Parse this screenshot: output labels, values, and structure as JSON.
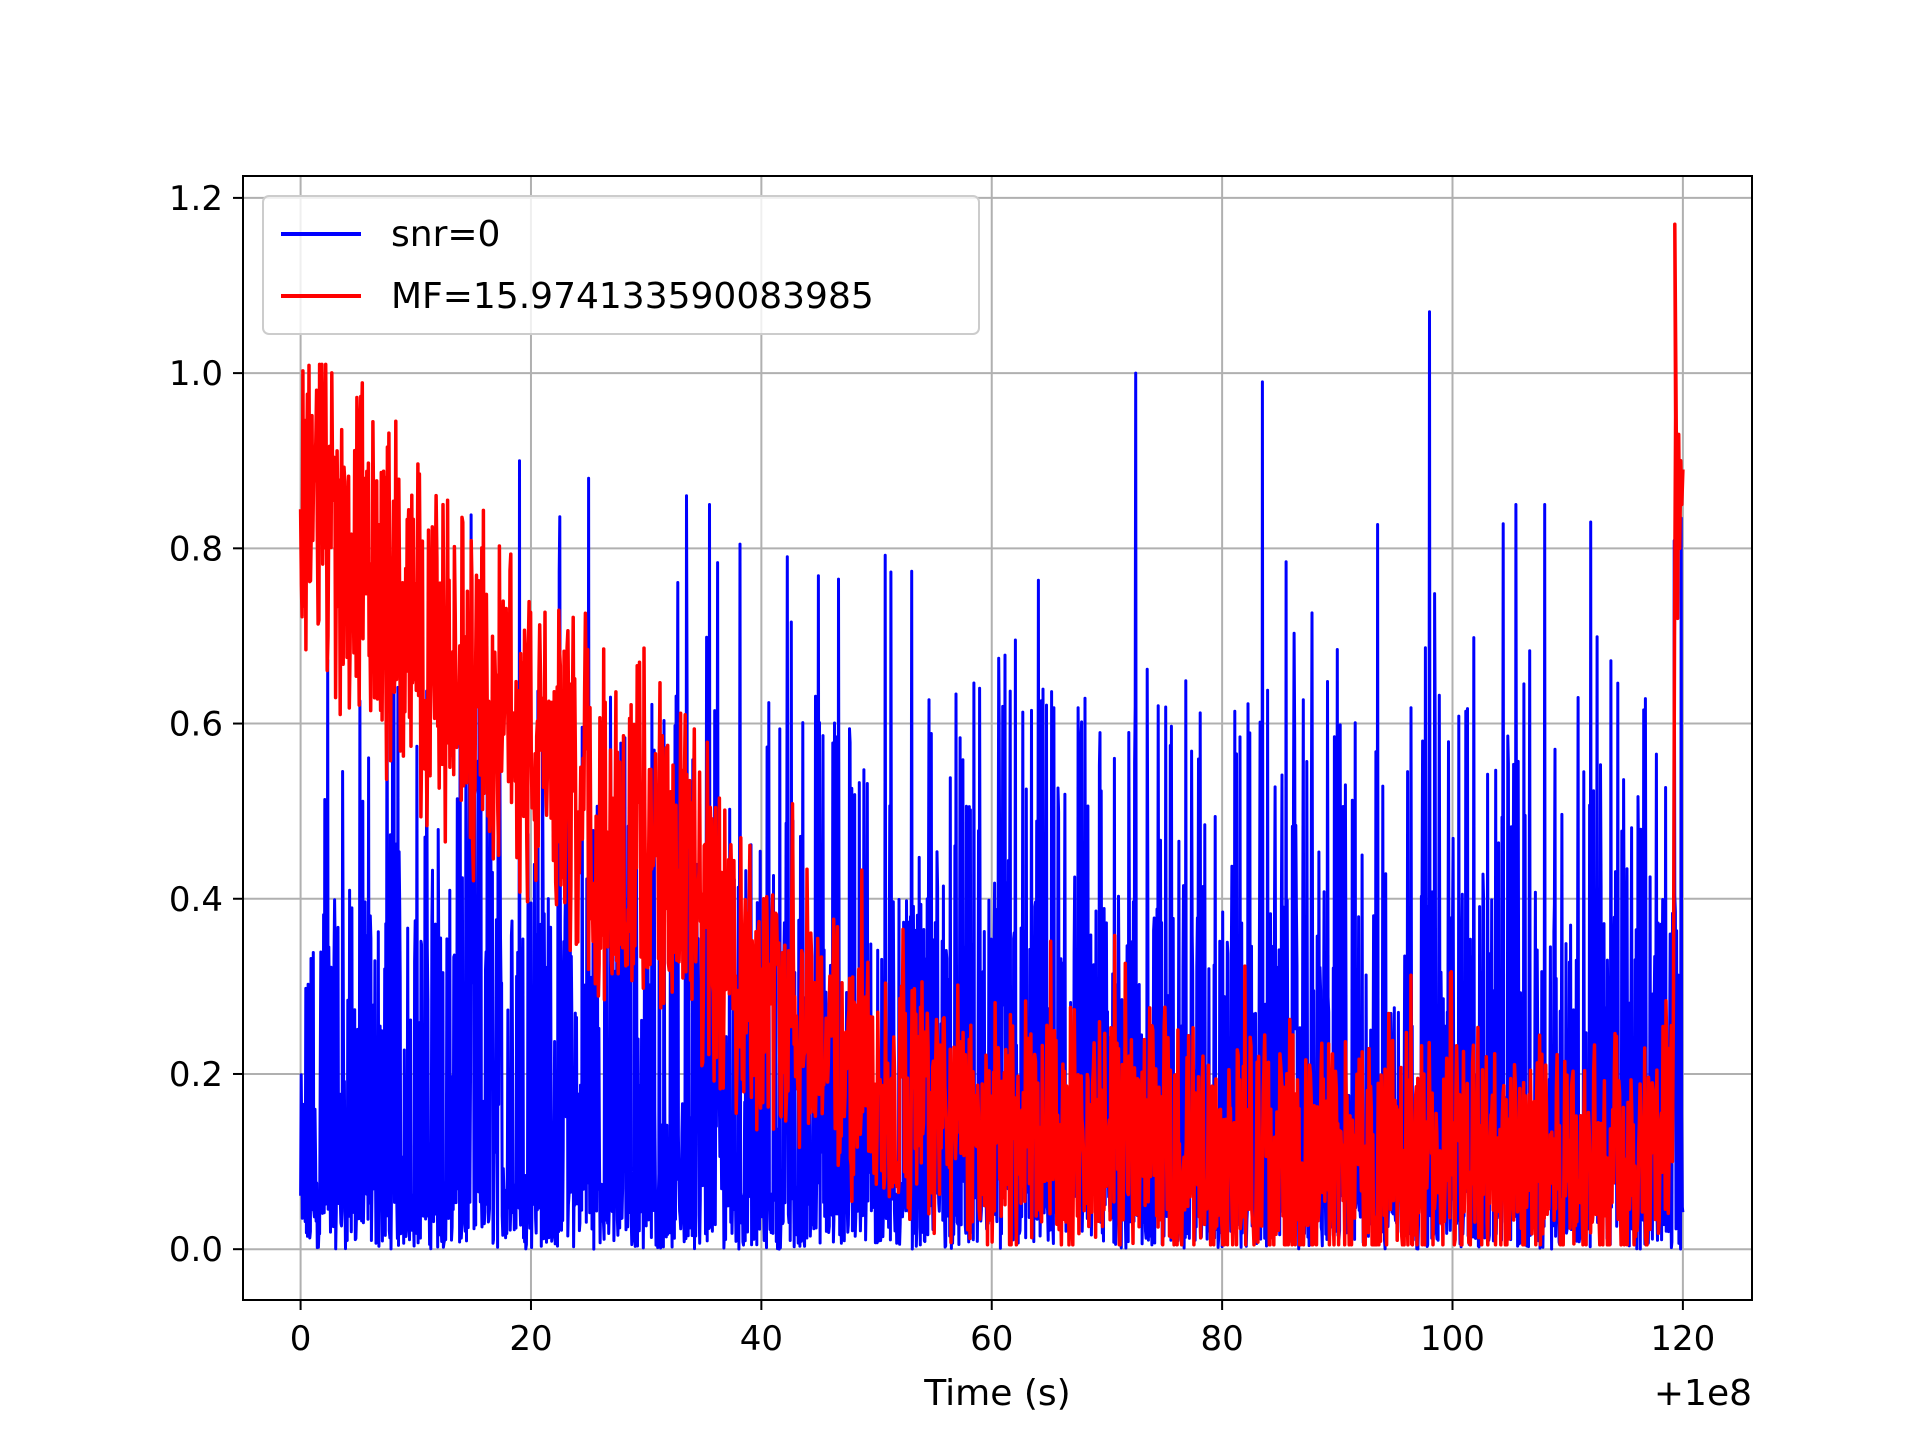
{
  "chart_data": {
    "type": "line",
    "title": "",
    "xlabel": "Time (s)",
    "ylabel": "",
    "x_offset_label": "+1e8",
    "xlim": [
      -5,
      126
    ],
    "ylim": [
      -0.058,
      1.225
    ],
    "xticks": [
      0,
      20,
      40,
      60,
      80,
      100,
      120
    ],
    "xtick_labels": [
      "0",
      "20",
      "40",
      "60",
      "80",
      "100",
      "120"
    ],
    "yticks": [
      0.0,
      0.2,
      0.4,
      0.6,
      0.8,
      1.0,
      1.2
    ],
    "ytick_labels": [
      "0.0",
      "0.2",
      "0.4",
      "0.6",
      "0.8",
      "1.0",
      "1.2"
    ],
    "grid": true,
    "legend_position": "upper-left",
    "x_range": [
      0,
      120
    ],
    "series": [
      {
        "name": "snr=0",
        "color": "#0000ff",
        "description_values": {
          "x_start": 0,
          "x_end": 120,
          "min": 0.0,
          "max": 1.07,
          "noise_floor_mean": 0.2,
          "notable_peaks": [
            {
              "x": 72.5,
              "y": 1.0
            },
            {
              "x": 83.5,
              "y": 0.99
            },
            {
              "x": 98,
              "y": 1.07
            },
            {
              "x": 19,
              "y": 0.9
            },
            {
              "x": 25,
              "y": 0.88
            },
            {
              "x": 33.5,
              "y": 0.86
            },
            {
              "x": 35.5,
              "y": 0.85
            },
            {
              "x": 105.5,
              "y": 0.85
            },
            {
              "x": 108,
              "y": 0.85
            },
            {
              "x": 112,
              "y": 0.83
            }
          ]
        }
      },
      {
        "name": "MF=15.974133590083985",
        "color": "#ff0000",
        "description_values": {
          "x_start": 0,
          "x_end": 120,
          "trend_points": [
            [
              0,
              0.87
            ],
            [
              5,
              0.8
            ],
            [
              10,
              0.7
            ],
            [
              15,
              0.62
            ],
            [
              20,
              0.58
            ],
            [
              25,
              0.5
            ],
            [
              30,
              0.45
            ],
            [
              35,
              0.38
            ],
            [
              40,
              0.3
            ],
            [
              45,
              0.25
            ],
            [
              50,
              0.18
            ],
            [
              60,
              0.13
            ],
            [
              70,
              0.12
            ],
            [
              80,
              0.1
            ],
            [
              90,
              0.1
            ],
            [
              100,
              0.1
            ],
            [
              110,
              0.1
            ],
            [
              118,
              0.12
            ]
          ],
          "final_spike": {
            "x": 119.3,
            "y": 1.17
          },
          "max": 1.17
        }
      }
    ]
  }
}
